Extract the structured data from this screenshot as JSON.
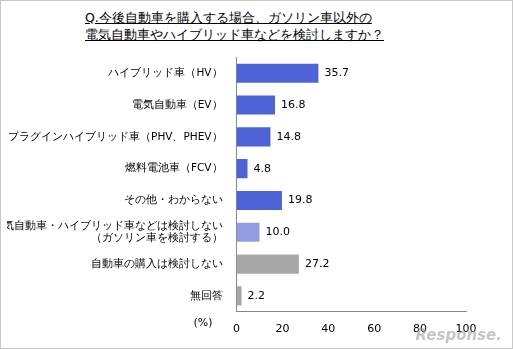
{
  "chart_data": {
    "type": "bar",
    "orientation": "horizontal",
    "title": [
      "Q.今後自動車を購入する場合、ガソリン車以外の",
      "電気自動車やハイブリッド車などを検討しますか？"
    ],
    "categories": [
      "ハイブリッド車（HV）",
      "電気自動車（EV）",
      "プラグインハイブリッド車（PHV、PHEV）",
      "燃料電池車（FCV）",
      "その他・わからない",
      "電気自動車・ハイブリッド車などは検討しない\n（ガソリン車を検討する）",
      "自動車の購入は検討しない",
      "無回答"
    ],
    "values": [
      35.7,
      16.8,
      14.8,
      4.8,
      19.8,
      10.0,
      27.2,
      2.2
    ],
    "value_labels": [
      "35.7",
      "16.8",
      "14.8",
      "4.8",
      "19.8",
      "10.0",
      "27.2",
      "2.2"
    ],
    "colors": [
      "#4f63d8",
      "#4f63d8",
      "#4f63d8",
      "#4f63d8",
      "#4f63d8",
      "#939ce0",
      "#a8a8a8",
      "#a8a8a8"
    ],
    "xlabel": "(%)",
    "xlim": [
      0,
      100
    ],
    "xticks": [
      0,
      20,
      40,
      60,
      80,
      100
    ],
    "grid": false,
    "data_labels": true,
    "annotations": [
      "Response."
    ]
  }
}
